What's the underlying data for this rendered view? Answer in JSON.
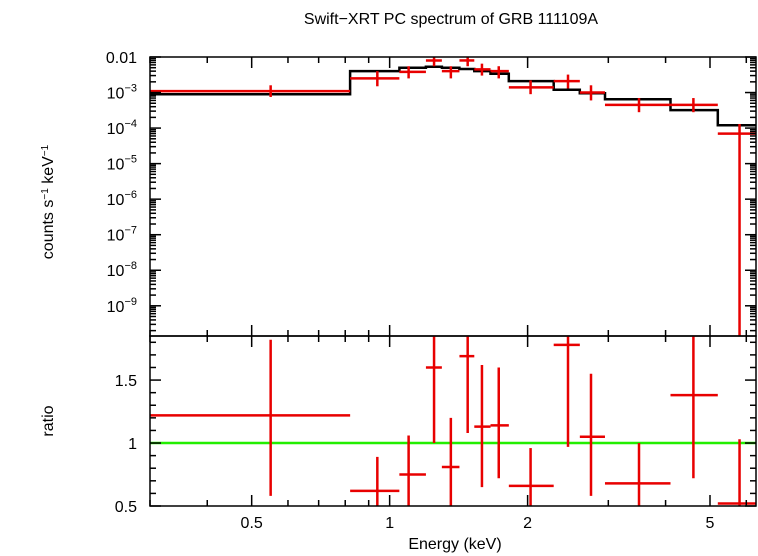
{
  "chart_data": {
    "type": "scatter",
    "title": "Swift−XRT PC spectrum of GRB 111109A",
    "xlabel": "Energy (keV)",
    "xscale": "log",
    "xlim": [
      0.3,
      6.3
    ],
    "xticks": [
      {
        "value": 0.5,
        "label": "0.5"
      },
      {
        "value": 1,
        "label": "1"
      },
      {
        "value": 2,
        "label": "2"
      },
      {
        "value": 5,
        "label": "5"
      }
    ],
    "panels": {
      "spectrum": {
        "ylabel_parts": [
          "counts s",
          "−1",
          " keV",
          "−1"
        ],
        "yscale": "log",
        "ylim_log10": [
          -9.85,
          -2.0
        ],
        "yticks": [
          {
            "exp": -2,
            "label": "0.01",
            "base": "",
            "sup": ""
          },
          {
            "exp": -3,
            "label": "",
            "base": "10",
            "sup": "−3"
          },
          {
            "exp": -4,
            "label": "",
            "base": "10",
            "sup": "−4"
          },
          {
            "exp": -5,
            "label": "",
            "base": "10",
            "sup": "−5"
          },
          {
            "exp": -6,
            "label": "",
            "base": "10",
            "sup": "−6"
          },
          {
            "exp": -7,
            "label": "",
            "base": "10",
            "sup": "−7"
          },
          {
            "exp": -8,
            "label": "",
            "base": "10",
            "sup": "−8"
          },
          {
            "exp": -9,
            "label": "",
            "base": "10",
            "sup": "−9"
          }
        ],
        "data": [
          {
            "x": 0.55,
            "xlo": 0.3,
            "xhi": 0.82,
            "y": 0.0011,
            "ylo": 0.00075,
            "yhi": 0.0016
          },
          {
            "x": 0.94,
            "xlo": 0.82,
            "xhi": 1.05,
            "y": 0.0025,
            "ylo": 0.0015,
            "yhi": 0.004
          },
          {
            "x": 1.1,
            "xlo": 1.05,
            "xhi": 1.2,
            "y": 0.0038,
            "ylo": 0.0025,
            "yhi": 0.0055
          },
          {
            "x": 1.25,
            "xlo": 1.2,
            "xhi": 1.3,
            "y": 0.008,
            "ylo": 0.0055,
            "yhi": 0.01
          },
          {
            "x": 1.36,
            "xlo": 1.3,
            "xhi": 1.42,
            "y": 0.004,
            "ylo": 0.0025,
            "yhi": 0.0055
          },
          {
            "x": 1.48,
            "xlo": 1.42,
            "xhi": 1.53,
            "y": 0.008,
            "ylo": 0.0055,
            "yhi": 0.01
          },
          {
            "x": 1.59,
            "xlo": 1.53,
            "xhi": 1.66,
            "y": 0.0045,
            "ylo": 0.003,
            "yhi": 0.0065
          },
          {
            "x": 1.73,
            "xlo": 1.66,
            "xhi": 1.82,
            "y": 0.004,
            "ylo": 0.0025,
            "yhi": 0.0055
          },
          {
            "x": 2.03,
            "xlo": 1.82,
            "xhi": 2.28,
            "y": 0.0014,
            "ylo": 0.0009,
            "yhi": 0.0022
          },
          {
            "x": 2.45,
            "xlo": 2.28,
            "xhi": 2.6,
            "y": 0.0021,
            "ylo": 0.0013,
            "yhi": 0.0032
          },
          {
            "x": 2.75,
            "xlo": 2.6,
            "xhi": 2.95,
            "y": 0.001,
            "ylo": 0.0006,
            "yhi": 0.0016
          },
          {
            "x": 3.5,
            "xlo": 2.95,
            "xhi": 4.1,
            "y": 0.00045,
            "ylo": 0.00028,
            "yhi": 0.0007
          },
          {
            "x": 4.6,
            "xlo": 4.1,
            "xhi": 5.2,
            "y": 0.00045,
            "ylo": 0.00028,
            "yhi": 0.0007
          },
          {
            "x": 5.8,
            "xlo": 5.2,
            "xhi": 6.3,
            "y": 7e-05,
            "ylo": 1e-10,
            "yhi": 0.00013
          }
        ],
        "model_steps": [
          {
            "x0": 0.3,
            "x1": 0.82,
            "y": 0.0009
          },
          {
            "x0": 0.82,
            "x1": 1.05,
            "y": 0.004
          },
          {
            "x0": 1.05,
            "x1": 1.2,
            "y": 0.005
          },
          {
            "x0": 1.2,
            "x1": 1.3,
            "y": 0.0053
          },
          {
            "x0": 1.3,
            "x1": 1.42,
            "y": 0.005
          },
          {
            "x0": 1.42,
            "x1": 1.53,
            "y": 0.0046
          },
          {
            "x0": 1.53,
            "x1": 1.66,
            "y": 0.004
          },
          {
            "x0": 1.66,
            "x1": 1.82,
            "y": 0.0034
          },
          {
            "x0": 1.82,
            "x1": 2.28,
            "y": 0.0021
          },
          {
            "x0": 2.28,
            "x1": 2.6,
            "y": 0.0012
          },
          {
            "x0": 2.6,
            "x1": 2.95,
            "y": 0.00095
          },
          {
            "x0": 2.95,
            "x1": 4.1,
            "y": 0.00065
          },
          {
            "x0": 4.1,
            "x1": 5.2,
            "y": 0.00032
          },
          {
            "x0": 5.2,
            "x1": 6.3,
            "y": 0.00012
          }
        ]
      },
      "ratio": {
        "ylabel": "ratio",
        "ylim": [
          0.5,
          1.85
        ],
        "yticks": [
          {
            "value": 0.5,
            "label": "0.5"
          },
          {
            "value": 1,
            "label": "1"
          },
          {
            "value": 1.5,
            "label": "1.5"
          }
        ],
        "reference_line": 1.0,
        "data": [
          {
            "x": 0.55,
            "xlo": 0.3,
            "xhi": 0.82,
            "y": 1.22,
            "ylo": 0.58,
            "yhi": 1.82
          },
          {
            "x": 0.94,
            "xlo": 0.82,
            "xhi": 1.05,
            "y": 0.62,
            "ylo": 0.5,
            "yhi": 0.89
          },
          {
            "x": 1.1,
            "xlo": 1.05,
            "xhi": 1.2,
            "y": 0.75,
            "ylo": 0.5,
            "yhi": 1.06
          },
          {
            "x": 1.25,
            "xlo": 1.2,
            "xhi": 1.3,
            "y": 1.6,
            "ylo": 1.0,
            "yhi": 1.85
          },
          {
            "x": 1.36,
            "xlo": 1.3,
            "xhi": 1.42,
            "y": 0.81,
            "ylo": 0.5,
            "yhi": 1.2
          },
          {
            "x": 1.48,
            "xlo": 1.42,
            "xhi": 1.53,
            "y": 1.69,
            "ylo": 1.08,
            "yhi": 1.85
          },
          {
            "x": 1.59,
            "xlo": 1.53,
            "xhi": 1.66,
            "y": 1.13,
            "ylo": 0.65,
            "yhi": 1.62
          },
          {
            "x": 1.73,
            "xlo": 1.66,
            "xhi": 1.82,
            "y": 1.14,
            "ylo": 0.72,
            "yhi": 1.6
          },
          {
            "x": 2.03,
            "xlo": 1.82,
            "xhi": 2.28,
            "y": 0.66,
            "ylo": 0.5,
            "yhi": 0.96
          },
          {
            "x": 2.45,
            "xlo": 2.28,
            "xhi": 2.6,
            "y": 1.78,
            "ylo": 0.97,
            "yhi": 1.85
          },
          {
            "x": 2.75,
            "xlo": 2.6,
            "xhi": 2.95,
            "y": 1.05,
            "ylo": 0.58,
            "yhi": 1.55
          },
          {
            "x": 3.5,
            "xlo": 2.95,
            "xhi": 4.1,
            "y": 0.68,
            "ylo": 0.5,
            "yhi": 1.0
          },
          {
            "x": 4.6,
            "xlo": 4.1,
            "xhi": 5.2,
            "y": 1.38,
            "ylo": 0.72,
            "yhi": 1.85
          },
          {
            "x": 5.8,
            "xlo": 5.2,
            "xhi": 6.3,
            "y": 0.52,
            "ylo": 0.5,
            "yhi": 1.03
          }
        ]
      }
    },
    "colors": {
      "data": "#e80000",
      "model": "#000000",
      "reference": "#22ee00",
      "axes": "#000000"
    }
  }
}
